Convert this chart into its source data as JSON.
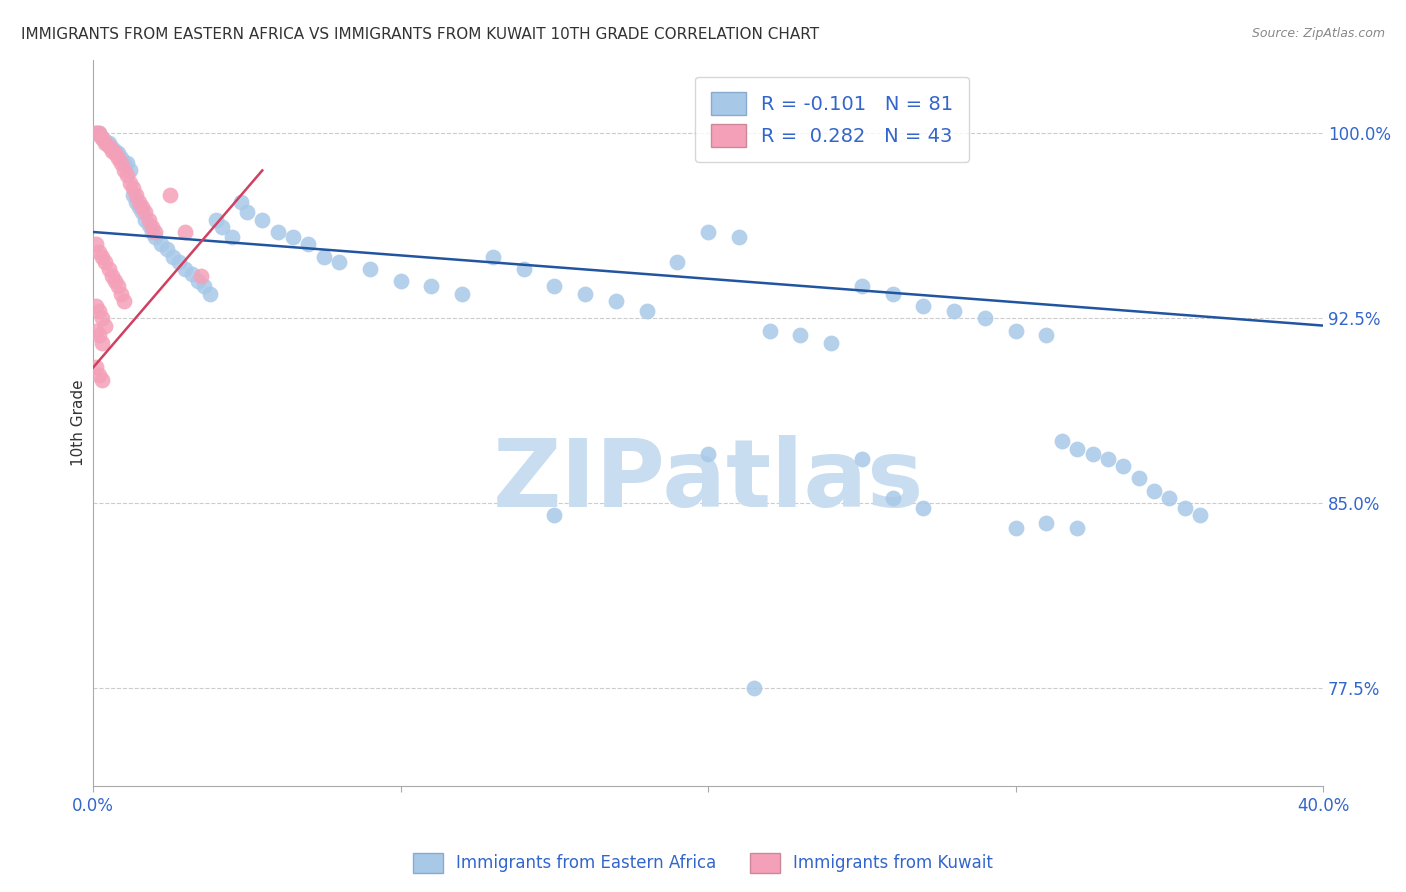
{
  "title": "IMMIGRANTS FROM EASTERN AFRICA VS IMMIGRANTS FROM KUWAIT 10TH GRADE CORRELATION CHART",
  "source": "Source: ZipAtlas.com",
  "ylabel": "10th Grade",
  "ytick_labels": [
    "77.5%",
    "85.0%",
    "92.5%",
    "100.0%"
  ],
  "ytick_values": [
    0.775,
    0.85,
    0.925,
    1.0
  ],
  "xlim": [
    0.0,
    0.4
  ],
  "ylim": [
    0.735,
    1.03
  ],
  "blue_color": "#a8c8e8",
  "pink_color": "#f4a0b8",
  "blue_line_color": "#2255a0",
  "pink_line_color": "#d04060",
  "blue_line": [
    [
      0.0,
      0.96
    ],
    [
      0.4,
      0.922
    ]
  ],
  "pink_line": [
    [
      0.0,
      0.905
    ],
    [
      0.055,
      0.985
    ]
  ],
  "background_color": "#ffffff",
  "grid_color": "#cccccc",
  "watermark_text": "ZIPatlas",
  "watermark_color": "#c8ddf0",
  "blue_scatter": [
    [
      0.001,
      1.0
    ],
    [
      0.002,
      1.0
    ],
    [
      0.003,
      0.998
    ],
    [
      0.004,
      0.997
    ],
    [
      0.005,
      0.996
    ],
    [
      0.006,
      0.994
    ],
    [
      0.007,
      0.993
    ],
    [
      0.008,
      0.992
    ],
    [
      0.009,
      0.99
    ],
    [
      0.01,
      0.988
    ],
    [
      0.011,
      0.988
    ],
    [
      0.012,
      0.985
    ],
    [
      0.013,
      0.975
    ],
    [
      0.014,
      0.972
    ],
    [
      0.015,
      0.97
    ],
    [
      0.016,
      0.968
    ],
    [
      0.017,
      0.965
    ],
    [
      0.018,
      0.963
    ],
    [
      0.019,
      0.96
    ],
    [
      0.02,
      0.958
    ],
    [
      0.022,
      0.955
    ],
    [
      0.024,
      0.953
    ],
    [
      0.026,
      0.95
    ],
    [
      0.028,
      0.948
    ],
    [
      0.03,
      0.945
    ],
    [
      0.032,
      0.943
    ],
    [
      0.034,
      0.94
    ],
    [
      0.036,
      0.938
    ],
    [
      0.038,
      0.935
    ],
    [
      0.04,
      0.965
    ],
    [
      0.042,
      0.962
    ],
    [
      0.045,
      0.958
    ],
    [
      0.048,
      0.972
    ],
    [
      0.05,
      0.968
    ],
    [
      0.055,
      0.965
    ],
    [
      0.06,
      0.96
    ],
    [
      0.065,
      0.958
    ],
    [
      0.07,
      0.955
    ],
    [
      0.075,
      0.95
    ],
    [
      0.08,
      0.948
    ],
    [
      0.09,
      0.945
    ],
    [
      0.1,
      0.94
    ],
    [
      0.11,
      0.938
    ],
    [
      0.12,
      0.935
    ],
    [
      0.13,
      0.95
    ],
    [
      0.14,
      0.945
    ],
    [
      0.15,
      0.938
    ],
    [
      0.16,
      0.935
    ],
    [
      0.17,
      0.932
    ],
    [
      0.18,
      0.928
    ],
    [
      0.19,
      0.948
    ],
    [
      0.2,
      0.96
    ],
    [
      0.21,
      0.958
    ],
    [
      0.22,
      0.92
    ],
    [
      0.23,
      0.918
    ],
    [
      0.24,
      0.915
    ],
    [
      0.25,
      0.938
    ],
    [
      0.26,
      0.935
    ],
    [
      0.27,
      0.93
    ],
    [
      0.28,
      0.928
    ],
    [
      0.29,
      0.925
    ],
    [
      0.3,
      0.92
    ],
    [
      0.31,
      0.918
    ],
    [
      0.315,
      0.875
    ],
    [
      0.32,
      0.872
    ],
    [
      0.325,
      0.87
    ],
    [
      0.33,
      0.868
    ],
    [
      0.335,
      0.865
    ],
    [
      0.34,
      0.86
    ],
    [
      0.345,
      0.855
    ],
    [
      0.35,
      0.852
    ],
    [
      0.355,
      0.848
    ],
    [
      0.36,
      0.845
    ],
    [
      0.2,
      0.87
    ],
    [
      0.25,
      0.868
    ],
    [
      0.26,
      0.852
    ],
    [
      0.27,
      0.848
    ],
    [
      0.215,
      0.775
    ],
    [
      0.3,
      0.84
    ],
    [
      0.31,
      0.842
    ],
    [
      0.32,
      0.84
    ],
    [
      0.15,
      0.845
    ]
  ],
  "pink_scatter": [
    [
      0.001,
      1.0
    ],
    [
      0.002,
      1.0
    ],
    [
      0.003,
      0.998
    ],
    [
      0.004,
      0.996
    ],
    [
      0.005,
      0.995
    ],
    [
      0.006,
      0.993
    ],
    [
      0.007,
      0.992
    ],
    [
      0.008,
      0.99
    ],
    [
      0.009,
      0.988
    ],
    [
      0.01,
      0.985
    ],
    [
      0.011,
      0.983
    ],
    [
      0.012,
      0.98
    ],
    [
      0.013,
      0.978
    ],
    [
      0.014,
      0.975
    ],
    [
      0.015,
      0.972
    ],
    [
      0.016,
      0.97
    ],
    [
      0.017,
      0.968
    ],
    [
      0.018,
      0.965
    ],
    [
      0.019,
      0.962
    ],
    [
      0.02,
      0.96
    ],
    [
      0.001,
      0.955
    ],
    [
      0.002,
      0.952
    ],
    [
      0.003,
      0.95
    ],
    [
      0.004,
      0.948
    ],
    [
      0.005,
      0.945
    ],
    [
      0.006,
      0.942
    ],
    [
      0.007,
      0.94
    ],
    [
      0.008,
      0.938
    ],
    [
      0.009,
      0.935
    ],
    [
      0.01,
      0.932
    ],
    [
      0.001,
      0.93
    ],
    [
      0.002,
      0.928
    ],
    [
      0.003,
      0.925
    ],
    [
      0.004,
      0.922
    ],
    [
      0.001,
      0.92
    ],
    [
      0.002,
      0.918
    ],
    [
      0.003,
      0.915
    ],
    [
      0.025,
      0.975
    ],
    [
      0.03,
      0.96
    ],
    [
      0.001,
      0.905
    ],
    [
      0.002,
      0.902
    ],
    [
      0.003,
      0.9
    ],
    [
      0.035,
      0.942
    ]
  ]
}
